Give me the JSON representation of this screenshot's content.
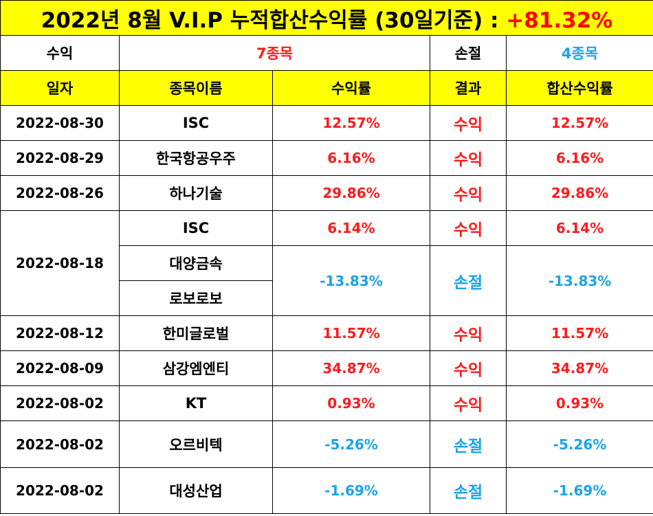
{
  "title": {
    "text": "2022년 8월 V.I.P 누적합산수익률 (30일기준) : ",
    "total": "+81.32%"
  },
  "summary": {
    "profit_label": "수익",
    "profit_count": "7종목",
    "loss_label": "손절",
    "loss_count": "4종목"
  },
  "headers": [
    "일자",
    "종목이름",
    "수익률",
    "결과",
    "합산수익률"
  ],
  "rows": {
    "r0": {
      "date": "2022-08-30",
      "name": "ISC",
      "rate": "12.57%",
      "result": "수익",
      "sum": "12.57%"
    },
    "r1": {
      "date": "2022-08-29",
      "name": "한국항공우주",
      "rate": "6.16%",
      "result": "수익",
      "sum": "6.16%"
    },
    "r2": {
      "date": "2022-08-26",
      "name": "하나기술",
      "rate": "29.86%",
      "result": "수익",
      "sum": "29.86%"
    },
    "r3": {
      "date": "2022-08-18",
      "name": "ISC",
      "rate": "6.14%",
      "result": "수익",
      "sum": "6.14%"
    },
    "r4": {
      "name": "대양금속",
      "rate": "-13.83%",
      "result": "손절",
      "sum": "-13.83%"
    },
    "r5": {
      "name": "로보로보"
    },
    "r6": {
      "date": "2022-08-12",
      "name": "한미글로벌",
      "rate": "11.57%",
      "result": "수익",
      "sum": "11.57%"
    },
    "r7": {
      "date": "2022-08-09",
      "name": "삼강엠엔티",
      "rate": "34.87%",
      "result": "수익",
      "sum": "34.87%"
    },
    "r8": {
      "date": "2022-08-02",
      "name": "KT",
      "rate": "0.93%",
      "result": "수익",
      "sum": "0.93%"
    },
    "r9": {
      "date": "2022-08-02",
      "name": "오르비텍",
      "rate": "-5.26%",
      "result": "손절",
      "sum": "-5.26%"
    },
    "r10": {
      "date": "2022-08-02",
      "name": "대성산업",
      "rate": "-1.69%",
      "result": "손절",
      "sum": "-1.69%"
    }
  },
  "colors": {
    "title_bg": "#ffff00",
    "profit": "#ff1a1a",
    "loss": "#1aa3e8",
    "border": "#000000"
  }
}
